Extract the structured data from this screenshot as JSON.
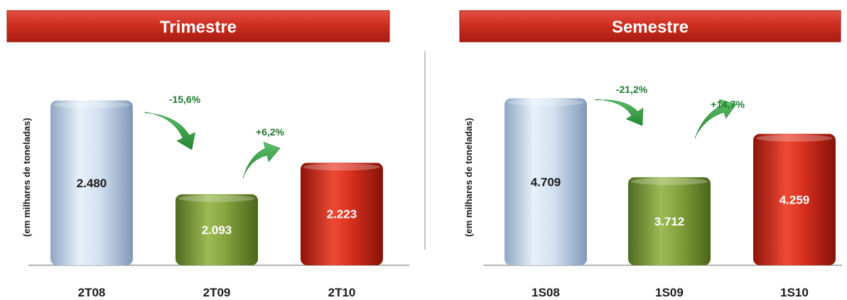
{
  "chart_data": [
    {
      "type": "bar",
      "title": "Trimestre",
      "ylabel": "(em milhares de toneladas)",
      "categories": [
        "2T08",
        "2T09",
        "2T10"
      ],
      "values": [
        2480,
        2093,
        2223
      ],
      "value_labels": [
        "2.480",
        "2.093",
        "2.223"
      ],
      "changes": [
        {
          "from": "2T08",
          "to": "2T09",
          "label": "-15,6%",
          "direction": "down"
        },
        {
          "from": "2T09",
          "to": "2T10",
          "label": "+6,2%",
          "direction": "up"
        }
      ],
      "colors": [
        "#c9d9ec",
        "#7a9a3a",
        "#cc2a1c"
      ],
      "value_label_colors": [
        "#1a1a1a",
        "#ffffff",
        "#ffffff"
      ],
      "ylim": [
        1800,
        2520
      ]
    },
    {
      "type": "bar",
      "title": "Semestre",
      "ylabel": "(em milhares de toneladas)",
      "categories": [
        "1S08",
        "1S09",
        "1S10"
      ],
      "values": [
        4709,
        3712,
        4259
      ],
      "value_labels": [
        "4.709",
        "3.712",
        "4.259"
      ],
      "changes": [
        {
          "from": "1S08",
          "to": "1S09",
          "label": "-21,2%",
          "direction": "down"
        },
        {
          "from": "1S09",
          "to": "1S10",
          "label": "+14,7%",
          "direction": "up"
        }
      ],
      "colors": [
        "#c9d9ec",
        "#7a9a3a",
        "#cc2a1c"
      ],
      "value_label_colors": [
        "#1a1a1a",
        "#ffffff",
        "#ffffff"
      ],
      "ylim": [
        2600,
        4750
      ]
    }
  ],
  "colors": {
    "header_red": "#c8291c",
    "arrow_green": "#3aa14a",
    "change_label_green": "#1e7a2e",
    "axis_gray": "#9a9a9a"
  }
}
